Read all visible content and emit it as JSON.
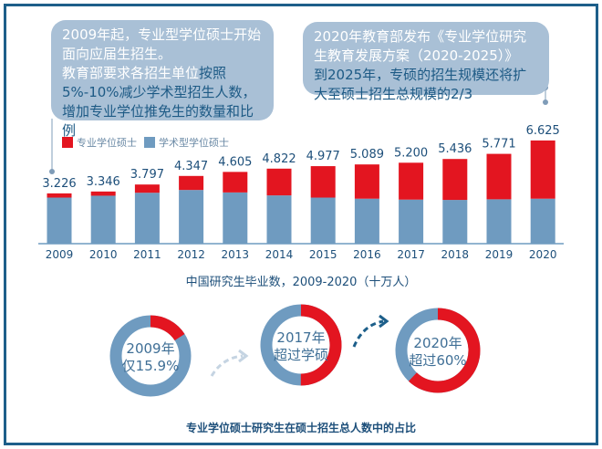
{
  "callouts": {
    "left": {
      "line1": "2009年起，专业型学位硕士开始面向应届生招生。",
      "line2a": "教育部要求各招生单位",
      "line2b": "按照5%-10%减少学术型招生人数，增加专业学位推免生的数量和比例"
    },
    "right": {
      "line1": "2020年教育部发布《专业学位研究生教育发展方案（2020-2025）》",
      "line2": "到2025年，专硕的招生规模还将扩大至硕士招生总规模的2/3"
    }
  },
  "colors": {
    "professional": "#e31520",
    "academic": "#6f9bc0",
    "text": "#1d4f7a"
  },
  "chart_data": {
    "type": "bar",
    "stacked": true,
    "title": "中国研究生毕业数，2009-2020（十万人）",
    "legend_position": "top-left",
    "categories": [
      "2009",
      "2010",
      "2011",
      "2012",
      "2013",
      "2014",
      "2015",
      "2016",
      "2017",
      "2018",
      "2019",
      "2020"
    ],
    "totals": [
      "3.226",
      "3.346",
      "3.797",
      "4.347",
      "4.605",
      "4.822",
      "4.977",
      "5.089",
      "5.200",
      "5.436",
      "5.771",
      "6.625"
    ],
    "series": [
      {
        "name": "学术型学位硕士",
        "values": [
          2.96,
          3.08,
          3.27,
          3.45,
          3.29,
          3.1,
          2.96,
          2.89,
          2.83,
          2.81,
          2.85,
          2.89
        ]
      },
      {
        "name": "专业学位硕士",
        "values": [
          0.27,
          0.27,
          0.53,
          0.9,
          1.32,
          1.72,
          2.02,
          2.2,
          2.37,
          2.63,
          2.92,
          3.74
        ]
      }
    ],
    "ylim": [
      0,
      6.625
    ],
    "grid": false
  },
  "donuts": {
    "title": "专业学位硕士研究生在硕士招生总人数中的占比",
    "items": [
      {
        "line1": "2009年",
        "line2": "仅15.9%",
        "share": 0.159
      },
      {
        "line1": "2017年",
        "line2": "超过学硕",
        "share": 0.5
      },
      {
        "line1": "2020年",
        "line2": "超过60%",
        "share": 0.62
      }
    ]
  }
}
